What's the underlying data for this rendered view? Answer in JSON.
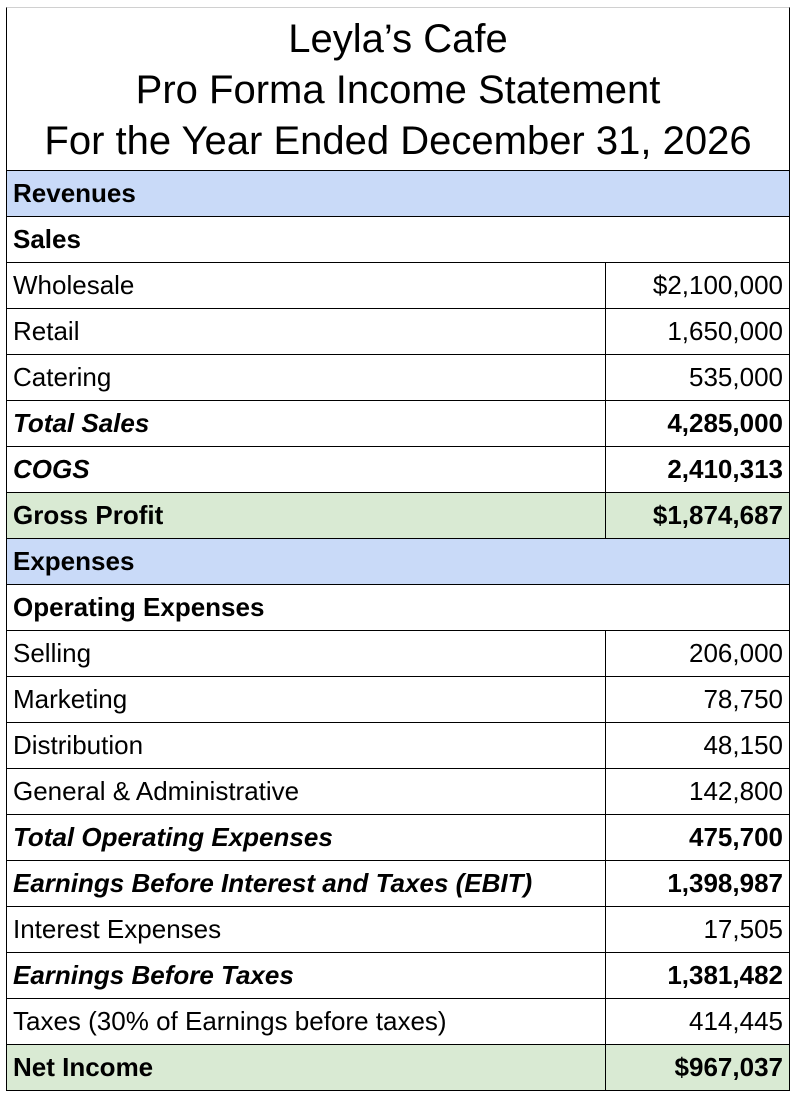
{
  "title": {
    "line1": "Leyla’s Cafe",
    "line2": "Pro Forma Income Statement",
    "line3": "For the Year Ended December 31, 2026"
  },
  "revenues": {
    "header": "Revenues",
    "sales_header": "Sales",
    "items": [
      {
        "label": "Wholesale",
        "value": "$2,100,000"
      },
      {
        "label": "Retail",
        "value": "1,650,000"
      },
      {
        "label": "Catering",
        "value": "535,000"
      }
    ],
    "total_sales": {
      "label": "Total Sales",
      "value": "4,285,000"
    },
    "cogs": {
      "label": "COGS",
      "value": "2,410,313"
    },
    "gross_profit": {
      "label": "Gross Profit",
      "value": "$1,874,687"
    }
  },
  "expenses": {
    "header": "Expenses",
    "operating_header": "Operating Expenses",
    "items": [
      {
        "label": "Selling",
        "value": "206,000"
      },
      {
        "label": "Marketing",
        "value": "78,750"
      },
      {
        "label": "Distribution",
        "value": "48,150"
      },
      {
        "label": "General & Administrative",
        "value": "142,800"
      }
    ],
    "total_operating": {
      "label": "Total Operating Expenses",
      "value": "475,700"
    },
    "ebit": {
      "label": "Earnings Before Interest and Taxes (EBIT)",
      "value": "1,398,987"
    },
    "interest": {
      "label": "Interest Expenses",
      "value": "17,505"
    },
    "ebt": {
      "label": "Earnings Before Taxes",
      "value": "1,381,482"
    },
    "taxes": {
      "label": "Taxes (30% of Earnings before taxes)",
      "value": "414,445"
    },
    "net_income": {
      "label": "Net Income",
      "value": "$967,037"
    }
  },
  "colors": {
    "section_header": "#c9daf8",
    "subtotal_highlight": "#d9ead3"
  }
}
